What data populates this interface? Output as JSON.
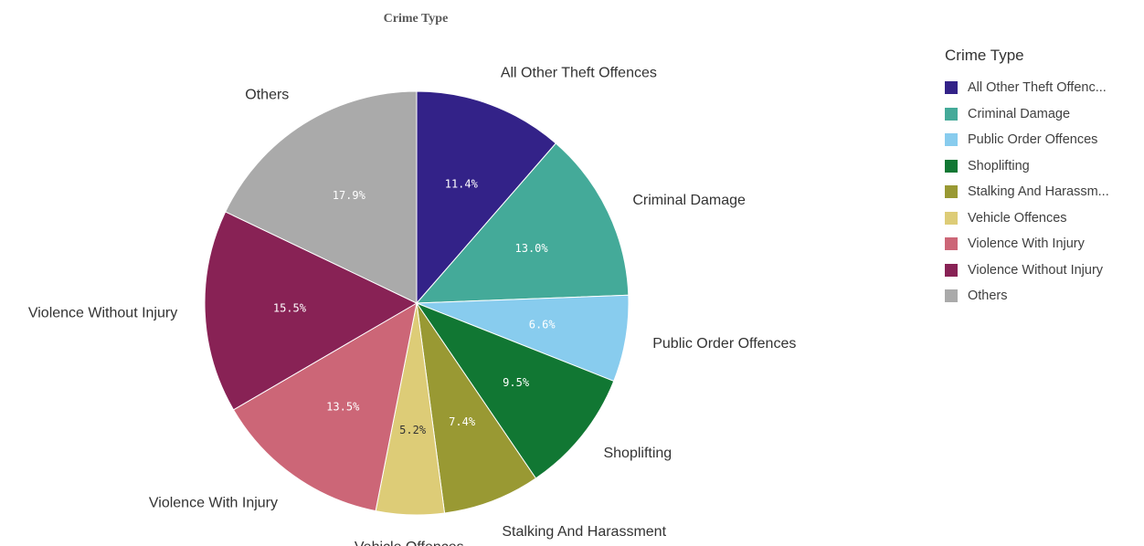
{
  "chart_data": {
    "type": "pie",
    "title": "Crime Type",
    "slices": [
      {
        "label": "All Other Theft Offences",
        "value": 11.4,
        "value_label": "11.4%",
        "color": "#332288"
      },
      {
        "label": "Criminal Damage",
        "value": 13.0,
        "value_label": "13.0%",
        "color": "#44AA99"
      },
      {
        "label": "Public Order Offences",
        "value": 6.6,
        "value_label": "6.6%",
        "color": "#88CCEE"
      },
      {
        "label": "Shoplifting",
        "value": 9.5,
        "value_label": "9.5%",
        "color": "#117733"
      },
      {
        "label": "Stalking And Harassment",
        "value": 7.4,
        "value_label": "7.4%",
        "color": "#999933"
      },
      {
        "label": "Vehicle Offences",
        "value": 5.2,
        "value_label": "5.2%",
        "color": "#DDCC77"
      },
      {
        "label": "Violence With Injury",
        "value": 13.5,
        "value_label": "13.5%",
        "color": "#CC6677"
      },
      {
        "label": "Violence Without Injury",
        "value": 15.5,
        "value_label": "15.5%",
        "color": "#882255"
      },
      {
        "label": "Others",
        "value": 17.9,
        "value_label": "17.9%",
        "color": "#AAAAAA"
      }
    ],
    "legend": {
      "title": "Crime Type",
      "position": "right",
      "items": [
        "All Other Theft Offenc...",
        "Criminal Damage",
        "Public Order Offences",
        "Shoplifting",
        "Stalking And Harassm...",
        "Vehicle Offences",
        "Violence With Injury",
        "Violence Without Injury",
        "Others"
      ]
    }
  }
}
